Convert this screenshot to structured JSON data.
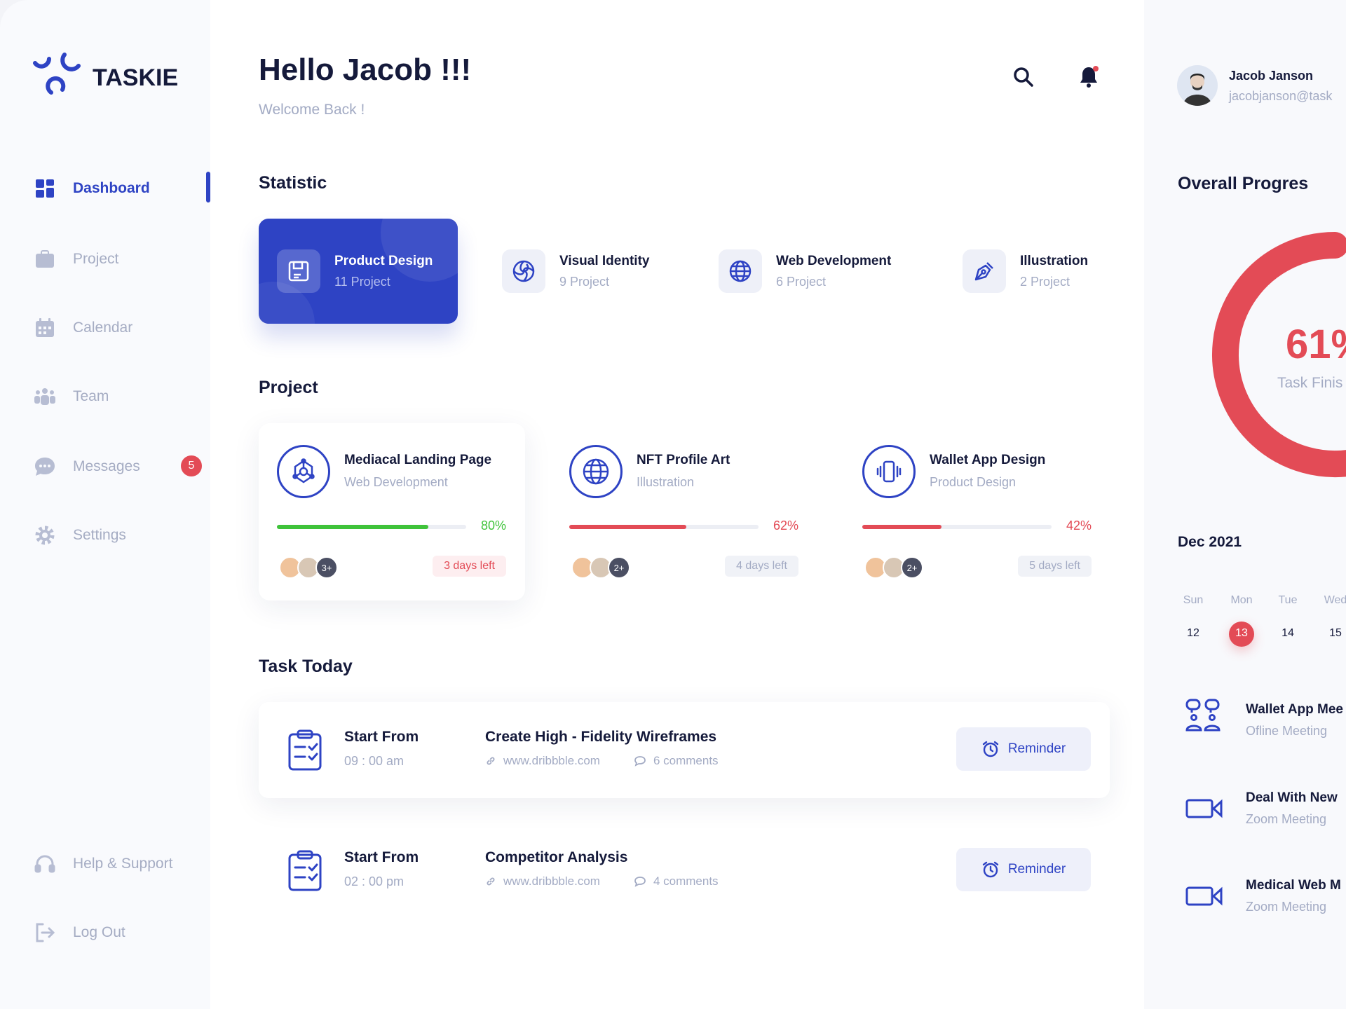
{
  "brand": {
    "name": "TASKIE",
    "accent": "#2e43c4"
  },
  "sidebar": {
    "items": [
      {
        "label": "Dashboard",
        "icon": "grid-icon",
        "active": true
      },
      {
        "label": "Project",
        "icon": "briefcase-icon"
      },
      {
        "label": "Calendar",
        "icon": "calendar-icon"
      },
      {
        "label": "Team",
        "icon": "team-icon"
      },
      {
        "label": "Messages",
        "icon": "chat-icon",
        "badge": "5"
      },
      {
        "label": "Settings",
        "icon": "gear-icon"
      }
    ],
    "bottom": [
      {
        "label": "Help & Support",
        "icon": "headset-icon"
      },
      {
        "label": "Log Out",
        "icon": "logout-icon"
      }
    ]
  },
  "header": {
    "greeting": "Hello Jacob !!!",
    "subtitle": "Welcome Back !"
  },
  "user": {
    "name": "Jacob Janson",
    "email": "jacobjanson@task"
  },
  "statistic": {
    "heading": "Statistic",
    "items": [
      {
        "title": "Product Design",
        "count": "11 Project",
        "icon": "floppy-icon",
        "active": true
      },
      {
        "title": "Visual Identity",
        "count": "9 Project",
        "icon": "spiral-icon"
      },
      {
        "title": "Web Development",
        "count": "6 Project",
        "icon": "globe-icon"
      },
      {
        "title": "Illustration",
        "count": "2 Project",
        "icon": "pen-tool-icon"
      }
    ]
  },
  "projects": {
    "heading": "Project",
    "items": [
      {
        "title": "Mediacal Landing Page",
        "category": "Web Development",
        "progress": 80,
        "progress_label": "80%",
        "color": "#3fc33a",
        "extra": "3+",
        "due": "3 days left",
        "urgent": true
      },
      {
        "title": "NFT Profile Art",
        "category": "Illustration",
        "progress": 62,
        "progress_label": "62%",
        "color": "#e34b56",
        "extra": "2+",
        "due": "4 days left"
      },
      {
        "title": "Wallet App Design",
        "category": "Product Design",
        "progress": 42,
        "progress_label": "42%",
        "color": "#e34b56",
        "extra": "2+",
        "due": "5 days left"
      }
    ]
  },
  "tasks": {
    "heading": "Task Today",
    "items": [
      {
        "start_label": "Start From",
        "time": "09 : 00 am",
        "title": "Create High - Fidelity Wireframes",
        "link": "www.dribbble.com",
        "comments": "6 comments",
        "button": "Reminder"
      },
      {
        "start_label": "Start From",
        "time": "02 : 00 pm",
        "title": "Competitor Analysis",
        "link": "www.dribbble.com",
        "comments": "4 comments",
        "button": "Reminder"
      }
    ]
  },
  "progress": {
    "heading": "Overall Progres",
    "value": 61,
    "label": "61%",
    "caption": "Task Finis",
    "color": "#e34b56"
  },
  "calendar": {
    "month": "Dec 2021",
    "days": [
      {
        "name": "Sun",
        "date": "12"
      },
      {
        "name": "Mon",
        "date": "13",
        "selected": true
      },
      {
        "name": "Tue",
        "date": "14"
      },
      {
        "name": "Wed",
        "date": "15"
      }
    ]
  },
  "meetings": [
    {
      "title": "Wallet App Mee",
      "type": "Ofline Meeting",
      "icon": "people-chat-icon"
    },
    {
      "title": "Deal With New",
      "type": "Zoom Meeting",
      "icon": "video-camera-icon"
    },
    {
      "title": "Medical Web M",
      "type": "Zoom Meeting",
      "icon": "video-camera-icon"
    }
  ]
}
